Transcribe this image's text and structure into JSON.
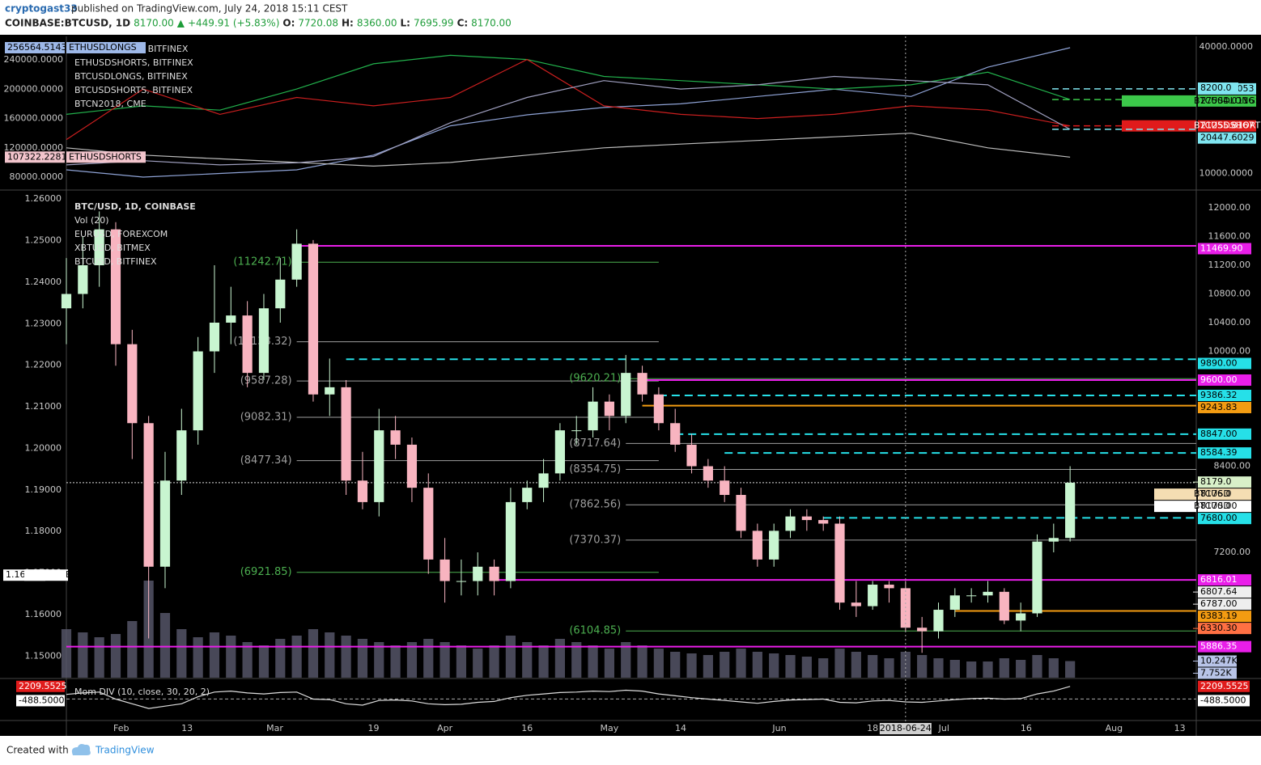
{
  "header": {
    "user": "cryptogast33",
    "published": "published on TradingView.com, July 24, 2018 15:11 CEST",
    "line2": [
      "COINBASE:BTCUSD, 1D",
      "8170.00",
      "▲",
      "+449.91 (+5.83%)",
      "O:",
      "7720.08",
      "H:",
      "8360.00",
      "L:",
      "7695.99",
      "C:",
      "8170.00"
    ]
  },
  "footer": {
    "created": "Created with",
    "brand": "TradingView"
  },
  "chart_data": [
    {
      "type": "line",
      "x": [
        "2018-01-22",
        "2018-02-05",
        "2018-02-19",
        "2018-03-05",
        "2018-03-19",
        "2018-04-02",
        "2018-04-16",
        "2018-04-30",
        "2018-05-14",
        "2018-05-28",
        "2018-06-11",
        "2018-06-25",
        "2018-07-09",
        "2018-07-24"
      ],
      "series": [
        {
          "name": "ETHUSDLONGS, BITFINEX",
          "color": "#8fa3d6",
          "values": [
            90000,
            80000,
            85000,
            90000,
            110000,
            150000,
            165000,
            175000,
            180000,
            190000,
            200000,
            190000,
            230000,
            256564.5143
          ]
        },
        {
          "name": "ETHUSDSHORTS, BITFINEX",
          "color": "#bdbdbd",
          "values": [
            120000,
            110000,
            105000,
            100000,
            95000,
            100000,
            110000,
            120000,
            125000,
            130000,
            135000,
            140000,
            120000,
            107322.2281
          ]
        },
        {
          "name": "BTCUSDLONGS, BITFINEX",
          "color": "#22b14c",
          "axis": "y2",
          "values": [
            24000,
            26000,
            25000,
            30000,
            36000,
            38000,
            37000,
            33000,
            32000,
            31000,
            30000,
            31000,
            34000,
            27504.0116
          ]
        },
        {
          "name": "BTCUSDSHORTS, BITFINEX",
          "color": "#cc1f1f",
          "axis": "y2",
          "values": [
            18000,
            30000,
            24000,
            28000,
            26000,
            28000,
            37000,
            26000,
            24000,
            23000,
            24000,
            26000,
            25000,
            21255.8167
          ]
        },
        {
          "name": "BTCN2018, CME",
          "color": "#a0a0c0",
          "axis": "y2",
          "values": [
            12000,
            13000,
            12000,
            12500,
            14000,
            22000,
            28000,
            32000,
            30000,
            31000,
            33000,
            32000,
            31000,
            20447.6029
          ]
        }
      ],
      "ylim": [
        65700,
        272000
      ],
      "yticks": [
        {
          "value": 240000,
          "label": "240000.0000"
        },
        {
          "value": 200000,
          "label": "200000.0000"
        },
        {
          "value": 160000,
          "label": "160000.0000"
        },
        {
          "value": 120000,
          "label": "120000.0000"
        },
        {
          "value": 80000,
          "label": "80000.0000"
        }
      ],
      "y2lim": [
        6600,
        42500
      ],
      "y2ticks": [
        {
          "value": 40000,
          "label": "40000.0000"
        },
        {
          "value": 10000,
          "label": "10000.0000"
        }
      ],
      "price_labels": [
        {
          "value": 256564.5143,
          "label": "256564.5143",
          "tag": "ETHUSDLONGS",
          "axis": "y",
          "color": "#9db8e8"
        },
        {
          "value": 107322.2281,
          "label": "107322.2281",
          "tag": "ETHUSDSHORTS",
          "axis": "y",
          "color": "#f2c4cc"
        },
        {
          "value": 30043.9053,
          "label": "30043.9053",
          "axis": "y2",
          "color": "#7fe5f0"
        },
        {
          "value": 27504.0116,
          "label": "27504.0116",
          "tag": "BTCUSDLONGS",
          "axis": "y2",
          "color": "#3cc84a"
        },
        {
          "value": 21255.8167,
          "label": "21255.8167",
          "tag": "BTCUSDSHORTS",
          "axis": "y2",
          "color": "#e01b1b"
        },
        {
          "value": 20447.6029,
          "label": "20447.6029",
          "axis": "y2",
          "color": "#7fe5f0"
        }
      ],
      "annotations": [
        "8200.0"
      ]
    },
    {
      "type": "candlestick",
      "title": "BTC/USD, 1D, COINBASE",
      "legend": [
        "Vol (20)",
        "EURUSD, FOREXCOM",
        "XBTUSD, BITMEX",
        "BTCUSD, BITFINEX"
      ],
      "x": [
        "2018-01-22",
        "2018-01-25",
        "2018-01-28",
        "2018-01-31",
        "2018-02-03",
        "2018-02-06",
        "2018-02-09",
        "2018-02-12",
        "2018-02-15",
        "2018-02-18",
        "2018-02-21",
        "2018-02-24",
        "2018-02-27",
        "2018-03-02",
        "2018-03-05",
        "2018-03-08",
        "2018-03-11",
        "2018-03-14",
        "2018-03-17",
        "2018-03-20",
        "2018-03-23",
        "2018-03-26",
        "2018-03-29",
        "2018-04-01",
        "2018-04-04",
        "2018-04-07",
        "2018-04-10",
        "2018-04-13",
        "2018-04-16",
        "2018-04-19",
        "2018-04-22",
        "2018-04-25",
        "2018-04-28",
        "2018-05-01",
        "2018-05-04",
        "2018-05-07",
        "2018-05-10",
        "2018-05-13",
        "2018-05-16",
        "2018-05-19",
        "2018-05-22",
        "2018-05-25",
        "2018-05-28",
        "2018-05-31",
        "2018-06-03",
        "2018-06-06",
        "2018-06-09",
        "2018-06-12",
        "2018-06-15",
        "2018-06-18",
        "2018-06-21",
        "2018-06-24",
        "2018-06-27",
        "2018-06-30",
        "2018-07-03",
        "2018-07-06",
        "2018-07-09",
        "2018-07-12",
        "2018-07-15",
        "2018-07-18",
        "2018-07-21",
        "2018-07-24"
      ],
      "open": [
        10600,
        10800,
        11200,
        11700,
        10100,
        9000,
        7000,
        8200,
        8900,
        10000,
        10400,
        10500,
        9700,
        10600,
        11000,
        11500,
        9400,
        9500,
        8200,
        7900,
        8900,
        8700,
        8100,
        7100,
        6800,
        6800,
        7000,
        6800,
        7900,
        8100,
        8300,
        8900,
        8900,
        9300,
        9100,
        9700,
        9400,
        9000,
        8700,
        8400,
        8200,
        8000,
        7500,
        7100,
        7500,
        7700,
        7650,
        7600,
        6500,
        6450,
        6750,
        6700,
        6150,
        6100,
        6400,
        6600,
        6600,
        6650,
        6250,
        6350,
        7350,
        7400
      ],
      "high": [
        11300,
        11600,
        11950,
        11800,
        10300,
        9100,
        8600,
        9200,
        10200,
        11200,
        10900,
        10700,
        10800,
        11300,
        11700,
        11550,
        9900,
        9600,
        8600,
        9200,
        9100,
        8800,
        8300,
        7400,
        7100,
        7200,
        7100,
        8100,
        8200,
        8500,
        9000,
        9100,
        9500,
        9400,
        9950,
        9800,
        9500,
        9200,
        8850,
        8500,
        8400,
        8100,
        7600,
        7600,
        7800,
        7800,
        7700,
        7700,
        6800,
        6800,
        6800,
        6800,
        6300,
        6500,
        6700,
        6700,
        6800,
        6700,
        6500,
        7450,
        7600,
        8400
      ],
      "low": [
        10100,
        10600,
        10900,
        9800,
        8500,
        6000,
        6700,
        8000,
        8700,
        9700,
        10100,
        9500,
        9600,
        10400,
        10900,
        9300,
        9100,
        8000,
        7800,
        7700,
        8500,
        7900,
        6900,
        6500,
        6600,
        6600,
        6600,
        6700,
        7800,
        7900,
        8200,
        8700,
        8800,
        8900,
        9000,
        9300,
        8900,
        8600,
        8300,
        8100,
        7900,
        7400,
        7000,
        7000,
        7400,
        7500,
        7500,
        6400,
        6300,
        6400,
        6500,
        6100,
        5800,
        6000,
        6300,
        6500,
        6500,
        6200,
        6100,
        6300,
        7200,
        7350
      ],
      "close": [
        10800,
        11200,
        11700,
        10100,
        9000,
        7000,
        8200,
        8900,
        10000,
        10400,
        10500,
        9700,
        10600,
        11000,
        11500,
        9400,
        9500,
        8200,
        7900,
        8900,
        8700,
        8100,
        7100,
        6800,
        6800,
        7000,
        6800,
        7900,
        8100,
        8300,
        8900,
        8900,
        9300,
        9100,
        9700,
        9400,
        9000,
        8700,
        8400,
        8200,
        8000,
        7500,
        7100,
        7500,
        7700,
        7650,
        7600,
        6500,
        6450,
        6750,
        6700,
        6150,
        6100,
        6400,
        6600,
        6600,
        6650,
        6250,
        6350,
        7350,
        7400,
        8170
      ],
      "up_color": "#c8f5d0",
      "down_color": "#f8b4c0",
      "volume": [
        30,
        28,
        25,
        27,
        35,
        60,
        40,
        30,
        25,
        28,
        26,
        22,
        20,
        24,
        26,
        30,
        28,
        26,
        24,
        22,
        20,
        22,
        24,
        22,
        20,
        18,
        20,
        26,
        22,
        20,
        24,
        22,
        20,
        18,
        22,
        20,
        18,
        16,
        15,
        14,
        16,
        18,
        16,
        15,
        14,
        13,
        12,
        18,
        16,
        14,
        12,
        16,
        14,
        12,
        11,
        10,
        10,
        12,
        11,
        14,
        12,
        10.247
      ],
      "volume_ylim": [
        0,
        50
      ],
      "volume_color": "#5a5a6e",
      "volume_labels": [
        {
          "value": 10.247,
          "label": "10.247K"
        },
        {
          "value": 7.752,
          "label": "7.752K"
        }
      ],
      "xlim": [
        "2018-01-22",
        "2018-08-16"
      ],
      "xticks": [
        {
          "value": "2018-02-01",
          "label": "Feb"
        },
        {
          "value": "2018-02-13",
          "label": "13"
        },
        {
          "value": "2018-03-01",
          "label": "Mar"
        },
        {
          "value": "2018-03-19",
          "label": "19"
        },
        {
          "value": "2018-04-01",
          "label": "Apr"
        },
        {
          "value": "2018-04-16",
          "label": "16"
        },
        {
          "value": "2018-05-01",
          "label": "May"
        },
        {
          "value": "2018-05-14",
          "label": "14"
        },
        {
          "value": "2018-06-01",
          "label": "Jun"
        },
        {
          "value": "2018-06-18",
          "label": "18"
        },
        {
          "value": "2018-07-01",
          "label": "Jul"
        },
        {
          "value": "2018-07-16",
          "label": "16"
        },
        {
          "value": "2018-08-01",
          "label": "Aug"
        },
        {
          "value": "2018-08-13",
          "label": "13"
        }
      ],
      "crosshair": "2018-06-24",
      "ylim": [
        5454,
        12214
      ],
      "yticks": [
        {
          "value": 12000,
          "label": "12000.00"
        },
        {
          "value": 11600,
          "label": "11600.00"
        },
        {
          "value": 11200,
          "label": "11200.00"
        },
        {
          "value": 10800,
          "label": "10800.00"
        },
        {
          "value": 10400,
          "label": "10400.00"
        },
        {
          "value": 10000,
          "label": "10000.00"
        },
        {
          "value": 8400,
          "label": "8400.00"
        },
        {
          "value": 7200,
          "label": "7200.00"
        }
      ],
      "y2lim": [
        1.1448,
        1.2616
      ],
      "y2ticks": [
        {
          "value": 1.26,
          "label": "1.26000"
        },
        {
          "value": 1.25,
          "label": "1.25000"
        },
        {
          "value": 1.24,
          "label": "1.24000"
        },
        {
          "value": 1.23,
          "label": "1.23000"
        },
        {
          "value": 1.22,
          "label": "1.22000"
        },
        {
          "value": 1.21,
          "label": "1.21000"
        },
        {
          "value": 1.2,
          "label": "1.20000"
        },
        {
          "value": 1.19,
          "label": "1.19000"
        },
        {
          "value": 1.18,
          "label": "1.18000"
        },
        {
          "value": 1.17,
          "label": "1.17000"
        },
        {
          "value": 1.16,
          "label": "1.16000"
        },
        {
          "value": 1.15,
          "label": "1.15000"
        }
      ],
      "y2_label": {
        "value": 1.16948,
        "label": "1.16948",
        "tag": "EURUSD"
      },
      "levels": [
        {
          "value": 11469.9,
          "label": "11469.90",
          "color": "#e91ee9",
          "from": "2018-03-05"
        },
        {
          "value": 9890,
          "label": "9890.00",
          "color": "#26e0e8",
          "dashed": true,
          "from": "2018-03-14"
        },
        {
          "value": 9600,
          "label": "9600.00",
          "color": "#e91ee9",
          "from": "2018-05-07"
        },
        {
          "value": 9386.32,
          "label": "9386.32",
          "color": "#26e0e8",
          "dashed": true,
          "from": "2018-05-10"
        },
        {
          "value": 9243.83,
          "label": "9243.83",
          "color": "#f39c12",
          "from": "2018-05-07"
        },
        {
          "value": 8847,
          "label": "8847.00",
          "color": "#26e0e8",
          "dashed": true,
          "from": "2018-05-13"
        },
        {
          "value": 8584.39,
          "label": "8584.39",
          "color": "#26e0e8",
          "dashed": true,
          "from": "2018-05-22"
        },
        {
          "value": 7680,
          "label": "7680.00",
          "color": "#26e0e8",
          "dashed": true,
          "from": "2018-06-09"
        },
        {
          "value": 6816.01,
          "label": "6816.01",
          "color": "#e91ee9",
          "from": "2018-04-10"
        },
        {
          "value": 6383.19,
          "label": "6383.19",
          "color": "#f39c12",
          "from": "2018-07-03"
        },
        {
          "value": 5886.35,
          "label": "5886.35",
          "color": "#e91ee9",
          "from": "2018-01-22"
        }
      ],
      "price_labels": [
        {
          "value": 8170,
          "label": "8170.00",
          "tag": "BTCUSD",
          "color": "#ffffff"
        },
        {
          "value": 8176,
          "label": "8176.0",
          "tag": "BTCUSD",
          "color": "#f5deb3"
        },
        {
          "value": 8179,
          "label": "8179.0",
          "color": "#d8f0c8"
        },
        {
          "value": 6807.64,
          "label": "6807.64",
          "color": "#eeeeee"
        },
        {
          "value": 6787,
          "label": "6787.00",
          "color": "#eeeeee"
        },
        {
          "value": 6330.3,
          "label": "6330.30",
          "color": "#ff7043"
        }
      ],
      "fibs": [
        {
          "value": 11242.71,
          "label": "(11242.71)",
          "color": "#4caf50",
          "from": "2018-03-05",
          "to": "2018-05-10"
        },
        {
          "value": 10133.32,
          "label": "(10133.32)",
          "color": "#9e9e9e",
          "from": "2018-03-05",
          "to": "2018-05-10"
        },
        {
          "value": 9587.28,
          "label": "(9587.28)",
          "color": "#9e9e9e",
          "from": "2018-03-05",
          "to": "2018-05-10"
        },
        {
          "value": 9082.31,
          "label": "(9082.31)",
          "color": "#9e9e9e",
          "from": "2018-03-05",
          "to": "2018-05-10"
        },
        {
          "value": 8477.34,
          "label": "(8477.34)",
          "color": "#9e9e9e",
          "from": "2018-03-05",
          "to": "2018-05-10"
        },
        {
          "value": 6921.85,
          "label": "(6921.85)",
          "color": "#4caf50",
          "from": "2018-03-05",
          "to": "2018-05-10"
        },
        {
          "value": 9620.21,
          "label": "(9620.21)",
          "color": "#4caf50",
          "from": "2018-05-04",
          "to": "2018-08-16"
        },
        {
          "value": 8717.64,
          "label": "(8717.64)",
          "color": "#9e9e9e",
          "from": "2018-05-04",
          "to": "2018-08-16"
        },
        {
          "value": 8354.75,
          "label": "(8354.75)",
          "color": "#9e9e9e",
          "from": "2018-05-04",
          "to": "2018-08-16"
        },
        {
          "value": 7862.56,
          "label": "(7862.56)",
          "color": "#9e9e9e",
          "from": "2018-05-04",
          "to": "2018-08-16"
        },
        {
          "value": 7370.37,
          "label": "(7370.37)",
          "color": "#9e9e9e",
          "from": "2018-05-04",
          "to": "2018-08-16"
        },
        {
          "value": 6104.85,
          "label": "(6104.85)",
          "color": "#4caf50",
          "from": "2018-05-04",
          "to": "2018-08-16"
        }
      ]
    },
    {
      "type": "line",
      "title": "Mom DIV (10, close, 30, 20, 2)",
      "color": "#dddddd",
      "values": [
        500,
        800,
        1000,
        -500,
        -1500,
        -2500,
        -2000,
        -1500,
        0,
        1000,
        1200,
        800,
        600,
        900,
        1000,
        -500,
        -600,
        -1500,
        -1800,
        -800,
        -700,
        -900,
        -1500,
        -1700,
        -1600,
        -1200,
        -1000,
        -200,
        300,
        600,
        900,
        1000,
        1200,
        1100,
        1400,
        1200,
        600,
        200,
        -200,
        -500,
        -800,
        -1100,
        -1400,
        -1000,
        -700,
        -600,
        -500,
        -1200,
        -1300,
        -900,
        -800,
        -1100,
        -1200,
        -900,
        -600,
        -400,
        -300,
        -500,
        -400,
        600,
        1200,
        2209.5525
      ],
      "ylim": [
        -4900,
        3550
      ],
      "zero": {
        "value": -488.5,
        "label": "-488.5000"
      },
      "last": {
        "value": 2209.5525,
        "label": "2209.5525"
      }
    }
  ]
}
